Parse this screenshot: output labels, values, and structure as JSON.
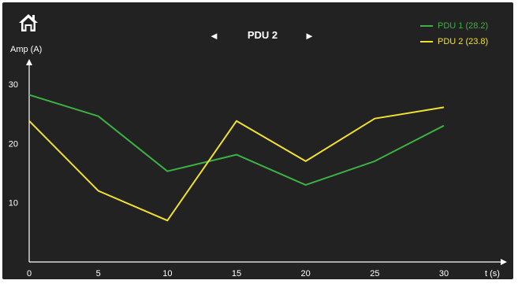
{
  "header": {
    "home_icon": "home-icon",
    "prev_icon": "◄",
    "next_icon": "►",
    "title": "PDU 2"
  },
  "colors": {
    "background": "#222222",
    "axis": "#ffffff",
    "text": "#ffffff",
    "pdu1": "#3cb043",
    "pdu2": "#f2e030"
  },
  "chart_data": {
    "type": "line",
    "title": "",
    "xlabel": "t (s)",
    "ylabel": "Amp (A)",
    "xlim": [
      0,
      33
    ],
    "ylim": [
      0,
      36
    ],
    "x_ticks": [
      0,
      5,
      10,
      15,
      20,
      25,
      30
    ],
    "y_ticks": [
      10,
      20,
      30
    ],
    "grid": false,
    "legend_position": "top-right",
    "series": [
      {
        "name": "PDU 1 (28.2)",
        "color": "#3cb043",
        "x": [
          0,
          5,
          10,
          15,
          20,
          25,
          30
        ],
        "y": [
          28.2,
          24.6,
          15.3,
          18.1,
          13.0,
          17.0,
          23.0
        ]
      },
      {
        "name": "PDU 2 (23.8)",
        "color": "#f2e030",
        "x": [
          0,
          5,
          10,
          15,
          20,
          25,
          30
        ],
        "y": [
          23.8,
          12.0,
          7.0,
          23.8,
          17.0,
          24.2,
          26.1
        ]
      }
    ]
  }
}
